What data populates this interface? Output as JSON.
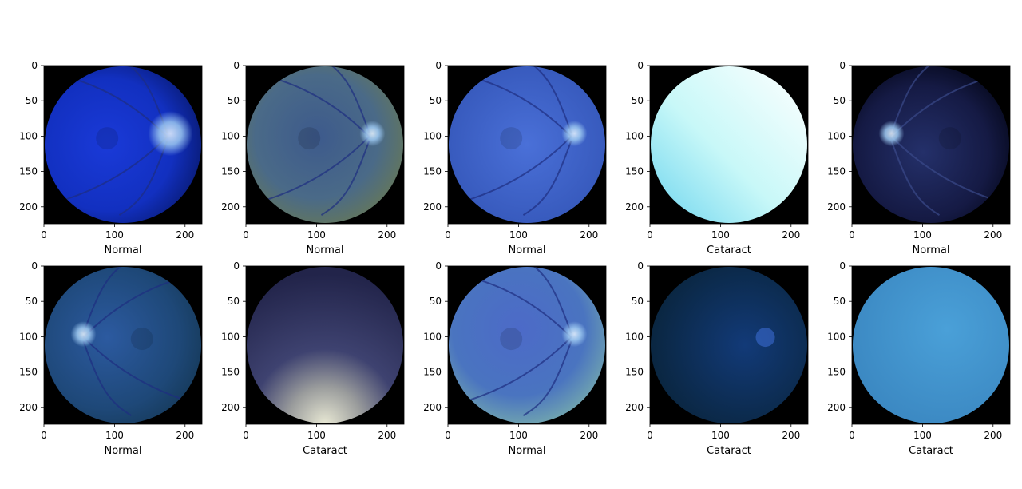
{
  "figure": {
    "xticks": [
      "0",
      "100",
      "200"
    ],
    "yticks": [
      "0",
      "50",
      "100",
      "150",
      "200"
    ],
    "panels": [
      {
        "label": "Normal",
        "style": "fundus-blue-disc-right"
      },
      {
        "label": "Normal",
        "style": "fundus-olive-disc-right"
      },
      {
        "label": "Normal",
        "style": "fundus-blue-disc-right"
      },
      {
        "label": "Cataract",
        "style": "cyan-white-haze"
      },
      {
        "label": "Normal",
        "style": "fundus-dark-disc-left"
      },
      {
        "label": "Normal",
        "style": "fundus-blue-disc-left"
      },
      {
        "label": "Cataract",
        "style": "dark-haze-bright-bottom"
      },
      {
        "label": "Normal",
        "style": "fundus-greenblue-disc-right"
      },
      {
        "label": "Cataract",
        "style": "dark-navy-faint-disc"
      },
      {
        "label": "Cataract",
        "style": "uniform-sky-blue"
      }
    ]
  }
}
